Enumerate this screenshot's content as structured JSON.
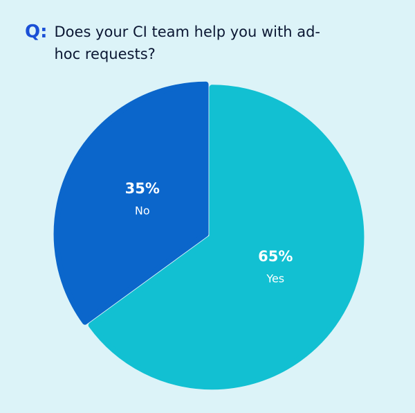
{
  "chart_data": {
    "type": "pie",
    "title_prefix": "Q:",
    "title": "Does your CI team help you with ad-hoc requests?",
    "categories": [
      "Yes",
      "No"
    ],
    "values": [
      65,
      35
    ],
    "value_labels": [
      "65%",
      "35%"
    ],
    "colors": [
      "#12c0d2",
      "#0b66cb"
    ]
  }
}
